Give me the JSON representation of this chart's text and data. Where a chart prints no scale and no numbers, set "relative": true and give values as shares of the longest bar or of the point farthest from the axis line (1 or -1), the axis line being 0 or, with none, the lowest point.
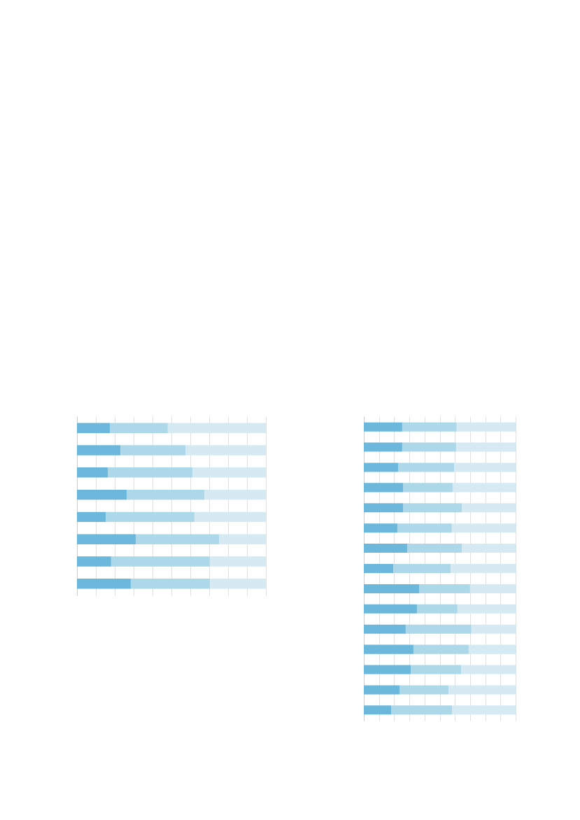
{
  "chart_data": [
    {
      "type": "bar",
      "orientation": "horizontal",
      "stacked": true,
      "relative": true,
      "grid": "x",
      "tick_labels": false,
      "categories": [
        null,
        null,
        null,
        null,
        null,
        null,
        null,
        null
      ],
      "series": [
        {
          "color": "#6cb8dc",
          "values": [
            0.174,
            0.23,
            0.163,
            0.263,
            0.152,
            0.311,
            0.181,
            0.285
          ]
        },
        {
          "color": "#add8ea",
          "values": [
            0.307,
            0.344,
            0.448,
            0.411,
            0.47,
            0.441,
            0.522,
            0.419
          ]
        },
        {
          "color": "#d6eaf3",
          "values": [
            0.519,
            0.426,
            0.389,
            0.326,
            0.378,
            0.248,
            0.297,
            0.296
          ]
        }
      ]
    },
    {
      "type": "bar",
      "orientation": "horizontal",
      "stacked": true,
      "relative": true,
      "grid": "x",
      "tick_labels": false,
      "categories": [
        null,
        null,
        null,
        null,
        null,
        null,
        null,
        null,
        null,
        null,
        null,
        null,
        null,
        null,
        null
      ],
      "series": [
        {
          "color": "#6cb8dc",
          "values": [
            0.253,
            0.253,
            0.226,
            0.258,
            0.258,
            0.221,
            0.286,
            0.194,
            0.364,
            0.35,
            0.276,
            0.327,
            0.309,
            0.235,
            0.18
          ]
        },
        {
          "color": "#add8ea",
          "values": [
            0.359,
            0.355,
            0.369,
            0.327,
            0.387,
            0.359,
            0.359,
            0.378,
            0.336,
            0.267,
            0.433,
            0.364,
            0.332,
            0.323,
            0.401
          ]
        },
        {
          "color": "#d6eaf3",
          "values": [
            0.388,
            0.392,
            0.405,
            0.415,
            0.355,
            0.42,
            0.355,
            0.428,
            0.3,
            0.383,
            0.291,
            0.309,
            0.359,
            0.442,
            0.419
          ]
        }
      ]
    }
  ]
}
